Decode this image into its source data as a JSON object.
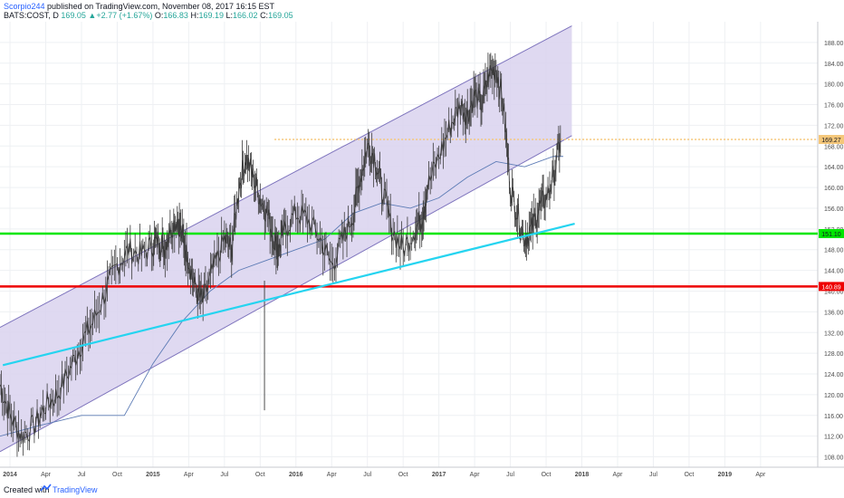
{
  "header": {
    "author": "Scorpio244",
    "published_text": " published on TradingView.com, November 08, 2017 16:15 EST",
    "symbol": "BATS:COST, D",
    "last": "169.05",
    "change": "+2.77 (+1.67%)",
    "o_label": "O:",
    "o_value": "166.83",
    "h_label": "H:",
    "h_value": "169.19",
    "l_label": "L:",
    "l_value": "166.02",
    "c_label": "C:",
    "c_value": "169.05"
  },
  "footer": {
    "created_with": "Created with",
    "brand": "TradingView"
  },
  "colors": {
    "channel_fill": "#d9d2ee",
    "channel_border": "#7e74bd",
    "green_line": "#00e600",
    "red_line": "#ee0000",
    "cyan_trend": "#25d4f0",
    "orange_dotted": "#f5c77a",
    "ma_line": "#5c7bb5",
    "price": "#3a3a3a",
    "label_bg": "#2a2e39"
  },
  "chart_data": {
    "type": "line",
    "title": "BATS:COST, D",
    "x_axis_labels": [
      "2014",
      "Apr",
      "Jul",
      "Oct",
      "2015",
      "Apr",
      "Jul",
      "Oct",
      "2016",
      "Apr",
      "Jul",
      "Oct",
      "2017",
      "Apr",
      "Jul",
      "Oct",
      "2018",
      "Apr",
      "Jul",
      "Oct",
      "2019",
      "Apr"
    ],
    "y_axis_labels": [
      "108.00",
      "112.00",
      "116.00",
      "120.00",
      "124.00",
      "128.00",
      "132.00",
      "136.00",
      "140.00",
      "144.00",
      "148.00",
      "152.00",
      "156.00",
      "160.00",
      "164.00",
      "168.00",
      "172.00",
      "176.00",
      "180.00",
      "184.00",
      "188.00"
    ],
    "ylim": [
      106,
      192
    ],
    "xlim": [
      2013.93,
      2019.65
    ],
    "grid": true,
    "price_labels": [
      {
        "text": "169.27",
        "value": 169.27,
        "color": "#f5c77a",
        "text_color": "#131722"
      },
      {
        "text": "151.10",
        "value": 151.1,
        "color": "#00e600",
        "text_color": "#131722"
      },
      {
        "text": "140.89",
        "value": 140.89,
        "color": "#ee0000",
        "text_color": "#ffffff"
      }
    ],
    "horizontal_lines": [
      {
        "name": "resistance",
        "value": 169.27,
        "style": "dotted",
        "color": "#f5c77a"
      },
      {
        "name": "support",
        "value": 151.1,
        "style": "solid",
        "color": "#00e600"
      },
      {
        "name": "support-2",
        "value": 140.89,
        "style": "solid",
        "color": "#ee0000"
      }
    ],
    "trend_line": {
      "x": [
        2013.95,
        2017.95
      ],
      "y": [
        125.7,
        153.0
      ],
      "color": "#25d4f0"
    },
    "channel": {
      "x_start": 2013.93,
      "x_end": 2017.93,
      "upper": [
        133.0,
        191.2
      ],
      "lower": [
        109.0,
        170.0
      ]
    },
    "price_series": {
      "x": [
        2013.93,
        2014.0,
        2014.08,
        2014.17,
        2014.25,
        2014.33,
        2014.42,
        2014.5,
        2014.58,
        2014.67,
        2014.75,
        2014.83,
        2014.92,
        2015.0,
        2015.04,
        2015.08,
        2015.12,
        2015.17,
        2015.21,
        2015.25,
        2015.3,
        2015.35,
        2015.42,
        2015.5,
        2015.55,
        2015.6,
        2015.65,
        2015.7,
        2015.75,
        2015.8,
        2015.85,
        2015.88,
        2015.92,
        2016.0,
        2016.08,
        2016.17,
        2016.25,
        2016.33,
        2016.4,
        2016.45,
        2016.5,
        2016.55,
        2016.6,
        2016.67,
        2016.75,
        2016.83,
        2016.88,
        2016.92,
        2017.0,
        2017.08,
        2017.15,
        2017.2,
        2017.25,
        2017.3,
        2017.35,
        2017.4,
        2017.45,
        2017.5,
        2017.55,
        2017.6,
        2017.65,
        2017.7,
        2017.75,
        2017.8,
        2017.85
      ],
      "y": [
        122,
        116,
        112,
        114,
        118,
        120,
        125,
        130,
        134,
        140,
        145,
        148,
        147,
        149,
        150,
        148,
        152,
        154,
        150,
        146,
        140,
        138,
        144,
        150,
        148,
        160,
        166,
        162,
        158,
        155,
        150,
        148,
        152,
        155,
        154,
        150,
        145,
        150,
        155,
        162,
        168,
        166,
        160,
        152,
        148,
        152,
        154,
        160,
        166,
        172,
        176,
        174,
        178,
        176,
        182,
        183,
        176,
        160,
        155,
        150,
        152,
        156,
        158,
        162,
        169
      ]
    },
    "ma_series": {
      "x": [
        2013.93,
        2014.2,
        2014.5,
        2014.8,
        2015.0,
        2015.2,
        2015.4,
        2015.6,
        2015.8,
        2016.0,
        2016.2,
        2016.4,
        2016.6,
        2016.8,
        2017.0,
        2017.2,
        2017.4,
        2017.6,
        2017.8,
        2017.87
      ],
      "y": [
        112,
        114,
        116,
        116,
        126,
        134,
        140,
        144,
        146,
        148,
        150,
        155,
        157,
        156,
        158,
        162,
        165,
        164,
        166,
        166
      ]
    }
  }
}
